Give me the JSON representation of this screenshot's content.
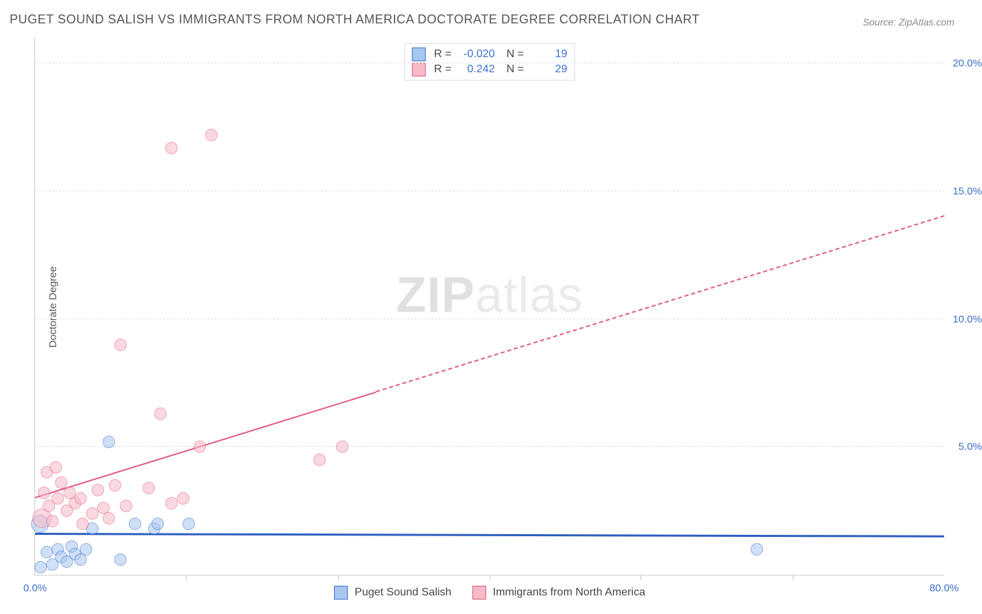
{
  "title": "PUGET SOUND SALISH VS IMMIGRANTS FROM NORTH AMERICA DOCTORATE DEGREE CORRELATION CHART",
  "source": "Source: ZipAtlas.com",
  "ylabel": "Doctorate Degree",
  "watermark_bold": "ZIP",
  "watermark_light": "atlas",
  "chart": {
    "type": "scatter",
    "xlim": [
      0,
      80
    ],
    "ylim": [
      0,
      21
    ],
    "xticks": [
      {
        "v": 0.0,
        "label": "0.0%"
      },
      {
        "v": 80.0,
        "label": "80.0%"
      }
    ],
    "xminor": [
      13.3,
      26.67,
      40.0,
      53.3,
      66.67
    ],
    "yticks": [
      {
        "v": 5.0,
        "label": "5.0%"
      },
      {
        "v": 10.0,
        "label": "10.0%"
      },
      {
        "v": 15.0,
        "label": "15.0%"
      },
      {
        "v": 20.0,
        "label": "20.0%"
      }
    ],
    "background_color": "#ffffff",
    "grid_color": "#e0e0e0",
    "axis_color": "#cccccc",
    "tick_label_color": "#3b6fc9",
    "series": [
      {
        "name": "Puget Sound Salish",
        "fill": "#a8c6f0",
        "stroke": "#3b6fc9",
        "fill_opacity": 0.55,
        "marker_r": 9,
        "r_value": "-0.020",
        "n_value": "19",
        "trend": {
          "x1": 0,
          "y1": 1.55,
          "x2": 80,
          "y2": 1.45,
          "color": "#2d5fbf",
          "width": 3,
          "dash": false,
          "dash_from_x": null
        },
        "points": [
          {
            "x": 0.4,
            "y": 2.0,
            "r": 13
          },
          {
            "x": 0.5,
            "y": 0.3
          },
          {
            "x": 1.0,
            "y": 0.9
          },
          {
            "x": 1.5,
            "y": 0.4
          },
          {
            "x": 2.0,
            "y": 1.0
          },
          {
            "x": 2.3,
            "y": 0.7
          },
          {
            "x": 2.8,
            "y": 0.5
          },
          {
            "x": 3.2,
            "y": 1.1
          },
          {
            "x": 3.5,
            "y": 0.8
          },
          {
            "x": 4.0,
            "y": 0.6
          },
          {
            "x": 4.5,
            "y": 1.0
          },
          {
            "x": 5.0,
            "y": 1.8
          },
          {
            "x": 6.5,
            "y": 5.2
          },
          {
            "x": 7.5,
            "y": 0.6
          },
          {
            "x": 8.8,
            "y": 2.0
          },
          {
            "x": 10.5,
            "y": 1.8
          },
          {
            "x": 10.8,
            "y": 2.0
          },
          {
            "x": 13.5,
            "y": 2.0
          },
          {
            "x": 63.5,
            "y": 1.0
          }
        ]
      },
      {
        "name": "Immigrants from North America",
        "fill": "#f7b9c8",
        "stroke": "#e15b7e",
        "fill_opacity": 0.55,
        "marker_r": 9,
        "r_value": "0.242",
        "n_value": "29",
        "trend": {
          "x1": 0,
          "y1": 3.0,
          "x2": 80,
          "y2": 14.0,
          "color": "#e15b7e",
          "width": 2,
          "dash": true,
          "dash_from_x": 30
        },
        "points": [
          {
            "x": 0.6,
            "y": 2.2,
            "r": 14
          },
          {
            "x": 0.8,
            "y": 3.2
          },
          {
            "x": 1.0,
            "y": 4.0
          },
          {
            "x": 1.2,
            "y": 2.7
          },
          {
            "x": 1.5,
            "y": 2.1
          },
          {
            "x": 1.8,
            "y": 4.2
          },
          {
            "x": 2.0,
            "y": 3.0
          },
          {
            "x": 2.3,
            "y": 3.6
          },
          {
            "x": 2.8,
            "y": 2.5
          },
          {
            "x": 3.0,
            "y": 3.2
          },
          {
            "x": 3.5,
            "y": 2.8
          },
          {
            "x": 4.0,
            "y": 3.0
          },
          {
            "x": 4.2,
            "y": 2.0
          },
          {
            "x": 5.0,
            "y": 2.4
          },
          {
            "x": 5.5,
            "y": 3.3
          },
          {
            "x": 6.0,
            "y": 2.6
          },
          {
            "x": 6.5,
            "y": 2.2
          },
          {
            "x": 7.0,
            "y": 3.5
          },
          {
            "x": 7.5,
            "y": 9.0
          },
          {
            "x": 8.0,
            "y": 2.7
          },
          {
            "x": 10.0,
            "y": 3.4
          },
          {
            "x": 11.0,
            "y": 6.3
          },
          {
            "x": 12.0,
            "y": 2.8
          },
          {
            "x": 12.0,
            "y": 16.7
          },
          {
            "x": 13.0,
            "y": 3.0
          },
          {
            "x": 14.5,
            "y": 5.0
          },
          {
            "x": 15.5,
            "y": 17.2
          },
          {
            "x": 25.0,
            "y": 4.5
          },
          {
            "x": 27.0,
            "y": 5.0
          }
        ]
      }
    ]
  },
  "legend_bottom": {
    "items": [
      {
        "label": "Puget Sound Salish",
        "swatch_fill": "#a8c6f0",
        "swatch_stroke": "#3b6fc9"
      },
      {
        "label": "Immigrants from North America",
        "swatch_fill": "#f7b9c8",
        "swatch_stroke": "#e15b7e"
      }
    ]
  }
}
